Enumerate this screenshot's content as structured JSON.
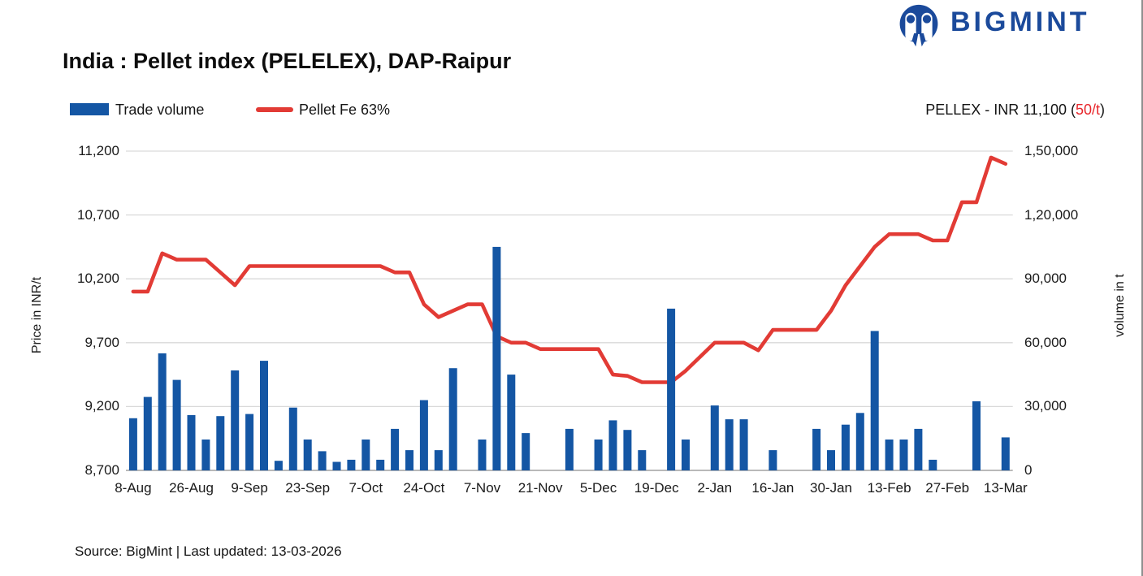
{
  "brand": {
    "name": "BIGMINT",
    "color": "#1b4a9b"
  },
  "title": "India : Pellet index (PELELEX), DAP-Raipur",
  "legend": {
    "trade_volume": "Trade volume",
    "pellet_fe": "Pellet Fe 63%"
  },
  "pellex_banner": {
    "text": "PELLEX - INR 11,100 ",
    "open": "(",
    "change": "50/t",
    "close": ")"
  },
  "axes": {
    "left_title": "Price in INR/t",
    "right_title": "volume in t",
    "left_ticks": [
      "11,200",
      "10,700",
      "10,200",
      "9,700",
      "9,200",
      "8,700"
    ],
    "right_ticks": [
      "1,50,000",
      "1,20,000",
      "90,000",
      "60,000",
      "30,000",
      "0"
    ]
  },
  "source": "Source: BigMint | Last updated: 13-03-2026",
  "colors": {
    "bar": "#1456a4",
    "line": "#e23b35",
    "grid": "#d9d9d9",
    "axis_line": "#b9b9b9",
    "change_red": "#e8262b"
  },
  "chart_data": {
    "type": "combo-bar-line",
    "n_points": 61,
    "label_every": 4,
    "x_labels": [
      "8-Aug",
      "26-Aug",
      "9-Sep",
      "23-Sep",
      "7-Oct",
      "24-Oct",
      "7-Nov",
      "21-Nov",
      "5-Dec",
      "19-Dec",
      "2-Jan",
      "16-Jan",
      "30-Jan",
      "13-Feb",
      "27-Feb",
      "13-Mar"
    ],
    "left_axis": {
      "label": "Price in INR/t",
      "min": 8700,
      "max": 11200,
      "tick_step": 500
    },
    "right_axis": {
      "label": "volume in t",
      "min": 0,
      "max": 150000,
      "tick_step": 30000
    },
    "grid": true,
    "legend_position": "top-left",
    "series": [
      {
        "name": "Trade volume",
        "type": "bar",
        "axis": "right",
        "color": "#1456a4",
        "values": [
          24500,
          34500,
          55000,
          42500,
          26000,
          14500,
          25500,
          47000,
          26500,
          51500,
          4500,
          29500,
          14500,
          9000,
          4000,
          5000,
          14500,
          5000,
          19500,
          9500,
          33000,
          9500,
          48000,
          0,
          14500,
          105000,
          45000,
          17500,
          0,
          0,
          19500,
          0,
          14500,
          23500,
          19000,
          9500,
          0,
          76000,
          14500,
          0,
          30500,
          24000,
          24000,
          0,
          9500,
          0,
          0,
          19500,
          9500,
          21500,
          27000,
          65500,
          14500,
          14500,
          19500,
          5000,
          0,
          0,
          32500,
          0,
          15500
        ]
      },
      {
        "name": "Pellet Fe 63%",
        "type": "line",
        "axis": "left",
        "color": "#e23b35",
        "values": [
          10100,
          10100,
          10400,
          10350,
          10350,
          10350,
          10250,
          10150,
          10300,
          10300,
          10300,
          10300,
          10300,
          10300,
          10300,
          10300,
          10300,
          10300,
          10250,
          10250,
          10000,
          9900,
          9950,
          10000,
          10000,
          9750,
          9700,
          9700,
          9650,
          9650,
          9650,
          9650,
          9650,
          9450,
          9440,
          9390,
          9390,
          9390,
          9480,
          9590,
          9700,
          9700,
          9700,
          9640,
          9800,
          9800,
          9800,
          9800,
          9950,
          10150,
          10300,
          10450,
          10550,
          10550,
          10550,
          10500,
          10500,
          10800,
          10800,
          11150,
          11100
        ]
      }
    ],
    "latest": {
      "pellex": "INR 11,100",
      "change": "50/t"
    }
  }
}
